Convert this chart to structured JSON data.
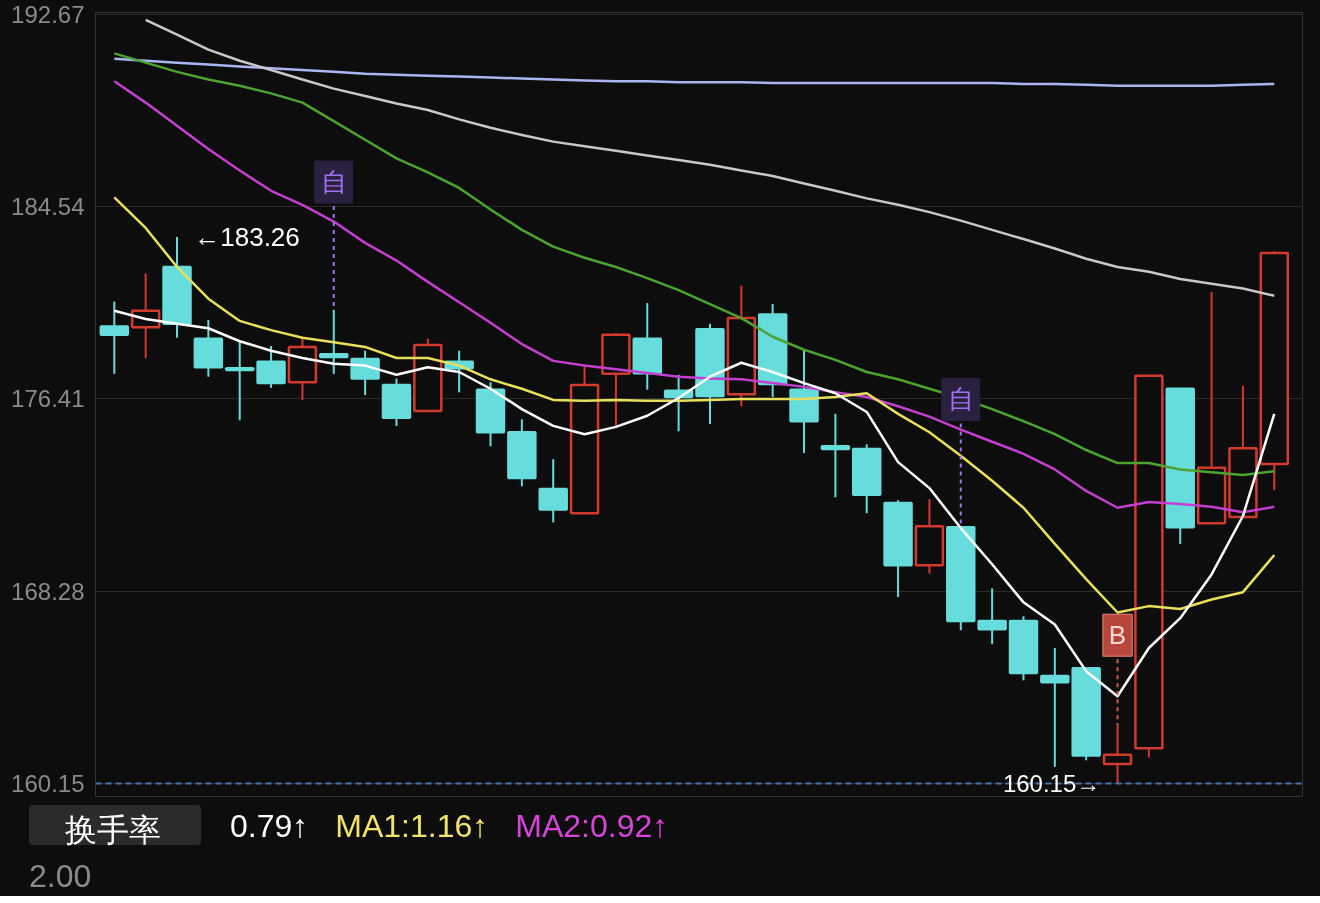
{
  "chart_data": {
    "type": "candlestick",
    "categories": [
      null,
      null,
      null,
      null,
      null,
      null,
      null,
      null,
      null,
      null,
      null,
      null,
      null,
      null,
      null,
      null,
      null,
      null,
      null,
      null,
      null,
      null,
      null,
      null,
      null,
      null,
      null,
      null,
      null,
      null,
      null,
      null,
      null,
      null,
      null,
      null,
      null,
      null
    ],
    "ylim": [
      159.6,
      192.75
    ],
    "yticks": [
      192.67,
      184.54,
      176.41,
      168.28,
      160.15
    ],
    "tick_labels": "y",
    "grid": "y",
    "ohlc": [
      [
        179.47,
        180.53,
        177.47,
        179.12
      ],
      [
        179.44,
        181.71,
        178.14,
        180.14
      ],
      [
        181.99,
        183.26,
        179.0,
        179.59
      ],
      [
        178.96,
        179.75,
        177.35,
        177.75
      ],
      [
        177.71,
        178.81,
        175.51,
        177.63
      ],
      [
        177.98,
        178.65,
        176.88,
        177.08
      ],
      [
        177.12,
        179.04,
        176.37,
        178.61
      ],
      [
        178.3,
        180.18,
        177.47,
        178.18
      ],
      [
        178.1,
        178.45,
        176.57,
        177.27
      ],
      [
        177.0,
        177.27,
        175.27,
        175.62
      ],
      [
        175.9,
        178.96,
        175.9,
        178.69
      ],
      [
        177.98,
        178.45,
        176.69,
        177.71
      ],
      [
        176.8,
        177.12,
        174.41,
        175.0
      ],
      [
        175.0,
        175.55,
        172.72,
        173.07
      ],
      [
        172.6,
        173.86,
        171.19,
        171.74
      ],
      [
        171.58,
        177.86,
        171.58,
        177.0
      ],
      [
        177.47,
        179.2,
        175.27,
        179.12
      ],
      [
        178.96,
        180.46,
        176.8,
        177.5
      ],
      [
        176.76,
        177.43,
        175.04,
        176.49
      ],
      [
        179.36,
        179.59,
        175.35,
        176.53
      ],
      [
        176.61,
        181.2,
        176.1,
        179.83
      ],
      [
        179.98,
        180.42,
        176.49,
        177.04
      ],
      [
        176.8,
        178.49,
        174.13,
        175.47
      ],
      [
        174.41,
        175.78,
        172.25,
        174.29
      ],
      [
        174.29,
        174.49,
        171.58,
        172.36
      ],
      [
        172.01,
        172.13,
        168.04,
        169.38
      ],
      [
        169.38,
        172.17,
        169.03,
        171.03
      ],
      [
        170.99,
        170.99,
        166.63,
        167.02
      ],
      [
        167.02,
        168.4,
        166.04,
        166.67
      ],
      [
        167.02,
        167.22,
        164.51,
        164.82
      ],
      [
        164.7,
        165.88,
        160.86,
        164.43
      ],
      [
        165.02,
        165.02,
        161.13,
        161.33
      ],
      [
        160.97,
        162.62,
        160.15,
        161.37
      ],
      [
        161.64,
        177.39,
        161.25,
        177.39
      ],
      [
        176.84,
        176.84,
        170.28,
        170.99
      ],
      [
        171.15,
        180.93,
        171.15,
        173.5
      ],
      [
        171.42,
        176.96,
        171.42,
        174.33
      ],
      [
        173.66,
        182.66,
        172.56,
        182.58
      ]
    ],
    "colors": [
      "#67dcdc",
      "#d23a2e",
      "#67dcdc",
      "#67dcdc",
      "#67dcdc",
      "#67dcdc",
      "#d23a2e",
      "#67dcdc",
      "#67dcdc",
      "#67dcdc",
      "#d23a2e",
      "#67dcdc",
      "#67dcdc",
      "#67dcdc",
      "#67dcdc",
      "#d23a2e",
      "#d23a2e",
      "#67dcdc",
      "#67dcdc",
      "#67dcdc",
      "#d23a2e",
      "#67dcdc",
      "#67dcdc",
      "#67dcdc",
      "#67dcdc",
      "#67dcdc",
      "#d23a2e",
      "#67dcdc",
      "#67dcdc",
      "#67dcdc",
      "#67dcdc",
      "#67dcdc",
      "#d23a2e",
      "#d23a2e",
      "#67dcdc",
      "#d23a2e",
      "#d23a2e",
      "#d23a2e"
    ],
    "series": [
      {
        "type": "line",
        "color": "#aab5f2",
        "values": [
          190.79,
          190.71,
          190.63,
          190.55,
          190.47,
          190.39,
          190.32,
          190.24,
          190.16,
          190.12,
          190.08,
          190.04,
          190.0,
          189.96,
          189.92,
          189.88,
          189.84,
          189.84,
          189.8,
          189.8,
          189.8,
          189.77,
          189.77,
          189.77,
          189.77,
          189.77,
          189.77,
          189.77,
          189.77,
          189.73,
          189.73,
          189.69,
          189.65,
          189.65,
          189.65,
          189.65,
          189.69,
          189.73
        ]
      },
      {
        "type": "line",
        "color": "#c8c8c8",
        "values": [
          null,
          192.44,
          191.81,
          191.18,
          190.71,
          190.32,
          189.92,
          189.53,
          189.22,
          188.9,
          188.63,
          188.23,
          187.88,
          187.57,
          187.29,
          187.09,
          186.9,
          186.7,
          186.51,
          186.31,
          186.07,
          185.84,
          185.52,
          185.21,
          184.89,
          184.62,
          184.31,
          183.95,
          183.56,
          183.17,
          182.77,
          182.34,
          181.99,
          181.79,
          181.48,
          181.28,
          181.08,
          180.77
        ]
      },
      {
        "type": "line",
        "color": "#4ca32f",
        "values": [
          191.02,
          190.63,
          190.24,
          189.92,
          189.65,
          189.33,
          188.94,
          188.16,
          187.37,
          186.58,
          185.99,
          185.33,
          184.42,
          183.56,
          182.85,
          182.38,
          181.99,
          181.52,
          181.01,
          180.42,
          179.83,
          179.04,
          178.49,
          178.06,
          177.55,
          177.24,
          176.84,
          176.45,
          175.98,
          175.47,
          174.92,
          174.25,
          173.7,
          173.7,
          173.43,
          173.31,
          173.19,
          173.35
        ]
      },
      {
        "type": "line",
        "color": "#c43fd0",
        "values": [
          189.84,
          188.94,
          187.96,
          186.98,
          186.07,
          185.21,
          184.62,
          183.91,
          183.01,
          182.26,
          181.36,
          180.5,
          179.63,
          178.73,
          178.02,
          177.82,
          177.67,
          177.51,
          177.35,
          177.27,
          177.24,
          177.08,
          176.92,
          176.69,
          176.49,
          176.1,
          175.66,
          175.11,
          174.6,
          174.09,
          173.43,
          172.52,
          171.81,
          172.05,
          171.97,
          171.85,
          171.62,
          171.85
        ]
      },
      {
        "type": "line",
        "color": "#e8e05a",
        "values": [
          184.93,
          183.64,
          181.99,
          180.65,
          179.71,
          179.32,
          179.0,
          178.81,
          178.61,
          178.14,
          178.14,
          177.82,
          177.24,
          176.84,
          176.37,
          176.33,
          176.37,
          176.33,
          176.33,
          176.37,
          176.41,
          176.41,
          176.41,
          176.49,
          176.65,
          175.78,
          175.0,
          174.01,
          172.95,
          171.81,
          170.28,
          168.79,
          167.38,
          167.65,
          167.53,
          167.93,
          168.24,
          169.81
        ]
      },
      {
        "type": "line",
        "color": "#ffffff",
        "values": [
          180.14,
          179.79,
          179.59,
          179.4,
          178.85,
          178.45,
          178.14,
          177.9,
          177.82,
          177.43,
          177.75,
          177.55,
          176.84,
          175.98,
          175.27,
          174.92,
          175.23,
          175.7,
          176.45,
          177.35,
          177.94,
          177.55,
          177.08,
          176.65,
          175.86,
          173.74,
          172.64,
          170.95,
          169.42,
          167.81,
          166.87,
          164.9,
          163.84,
          165.88,
          167.14,
          168.99,
          171.46,
          175.78
        ]
      }
    ],
    "ref_lines": [
      {
        "axis": "y",
        "value": 160.15,
        "label": "160.15→",
        "color": "#4a6fb0",
        "line_style": "dashed"
      }
    ],
    "annotations": [
      "←183.26",
      {
        "text": "自",
        "y": 180.18
      },
      {
        "text": "自",
        "y": 170.99
      },
      {
        "text": "B",
        "y": 162.62
      },
      "换手率",
      "0.79↑",
      "MA1:1.16↑",
      "MA2:0.92↑",
      "2.00"
    ]
  }
}
